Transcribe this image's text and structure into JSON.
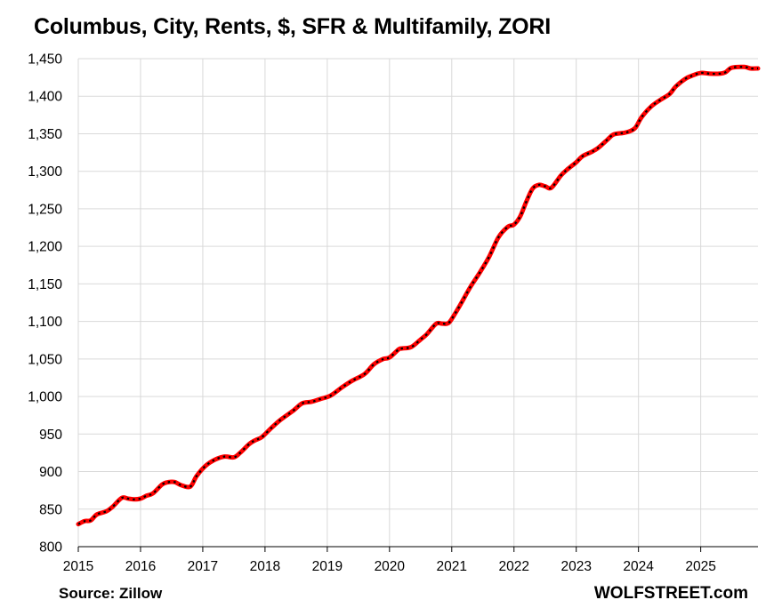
{
  "chart_data": {
    "type": "line",
    "title": "Columbus, City, Rents, $, SFR & Multifamily, ZORI",
    "source": "Source: Zillow",
    "brand": "WOLFSTREET.com",
    "xlabel": "",
    "ylabel": "",
    "ylim": [
      800,
      1450
    ],
    "xlim": [
      2015,
      2025.92
    ],
    "grid": true,
    "legend": "none",
    "y_ticks": [
      800,
      850,
      900,
      950,
      1000,
      1050,
      1100,
      1150,
      1200,
      1250,
      1300,
      1350,
      1400,
      1450
    ],
    "y_tick_labels": [
      "800",
      "850",
      "900",
      "950",
      "1,000",
      "1,050",
      "1,100",
      "1,150",
      "1,200",
      "1,250",
      "1,300",
      "1,350",
      "1,400",
      "1,450"
    ],
    "x_ticks": [
      2015,
      2016,
      2017,
      2018,
      2019,
      2020,
      2021,
      2022,
      2023,
      2024,
      2025
    ],
    "x_tick_labels": [
      "2015",
      "2016",
      "2017",
      "2018",
      "2019",
      "2020",
      "2021",
      "2022",
      "2023",
      "2024",
      "2025"
    ],
    "colors": {
      "line": "#ff0000",
      "dash": "#000000",
      "grid": "#d9d9d9",
      "axis": "#000000"
    },
    "series": [
      {
        "x": [
          2015.0,
          2015.1,
          2015.2,
          2015.3,
          2015.45,
          2015.55,
          2015.7,
          2015.8,
          2015.9,
          2016.0,
          2016.1,
          2016.2,
          2016.35,
          2016.45,
          2016.55,
          2016.65,
          2016.8,
          2016.9,
          2017.05,
          2017.2,
          2017.35,
          2017.5,
          2017.6,
          2017.75,
          2017.85,
          2017.95,
          2018.1,
          2018.25,
          2018.45,
          2018.6,
          2018.75,
          2018.9,
          2019.05,
          2019.25,
          2019.4,
          2019.6,
          2019.75,
          2019.9,
          2020.0,
          2020.15,
          2020.2,
          2020.35,
          2020.5,
          2020.6,
          2020.75,
          2020.85,
          2020.95,
          2021.05,
          2021.15,
          2021.3,
          2021.45,
          2021.6,
          2021.75,
          2021.9,
          2022.0,
          2022.1,
          2022.2,
          2022.3,
          2022.4,
          2022.5,
          2022.6,
          2022.75,
          2022.85,
          2023.0,
          2023.1,
          2023.25,
          2023.35,
          2023.5,
          2023.6,
          2023.75,
          2023.85,
          2023.95,
          2024.05,
          2024.2,
          2024.35,
          2024.5,
          2024.6,
          2024.75,
          2024.85,
          2025.0,
          2025.15,
          2025.3,
          2025.4,
          2025.5,
          2025.7,
          2025.8,
          2025.92
        ],
        "values": [
          830,
          834,
          835,
          843,
          847,
          853,
          865,
          864,
          863,
          864,
          868,
          871,
          883,
          886,
          886,
          882,
          880,
          894,
          908,
          916,
          920,
          919,
          925,
          937,
          942,
          946,
          958,
          969,
          981,
          991,
          993,
          997,
          1001,
          1013,
          1021,
          1030,
          1043,
          1050,
          1052,
          1063,
          1064,
          1066,
          1076,
          1083,
          1097,
          1097,
          1098,
          1110,
          1124,
          1146,
          1165,
          1186,
          1212,
          1226,
          1229,
          1240,
          1260,
          1277,
          1282,
          1280,
          1278,
          1294,
          1302,
          1312,
          1320,
          1326,
          1331,
          1342,
          1349,
          1351,
          1353,
          1358,
          1372,
          1386,
          1395,
          1403,
          1413,
          1423,
          1427,
          1431,
          1430,
          1430,
          1432,
          1438,
          1439,
          1437,
          1437
        ]
      }
    ]
  }
}
